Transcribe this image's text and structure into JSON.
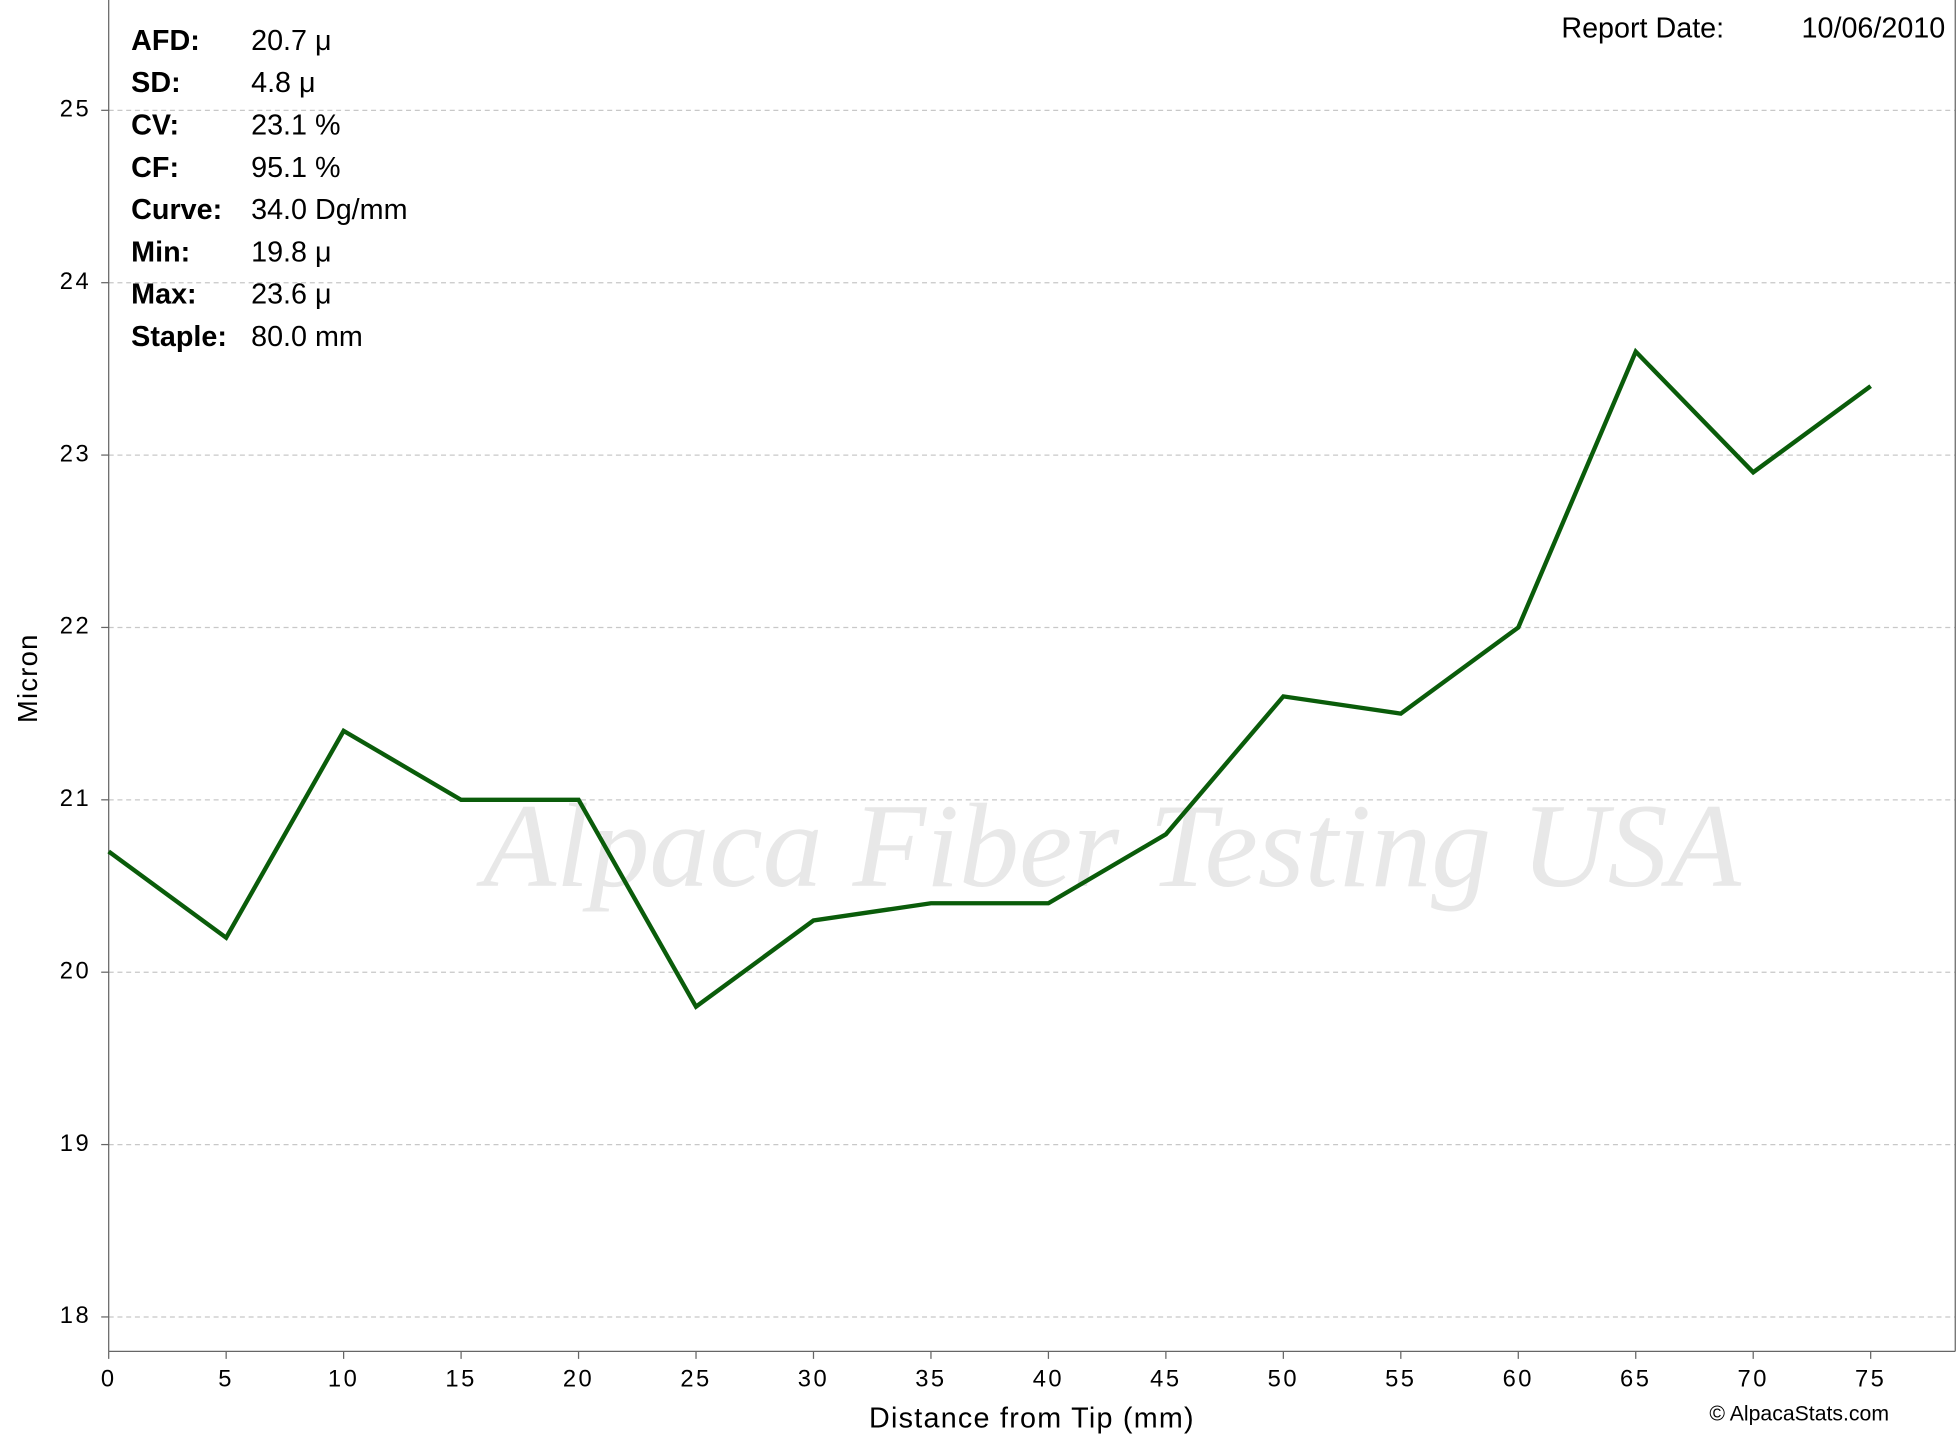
{
  "chart_data": {
    "type": "line",
    "x_label": "Distance from Tip (mm)",
    "y_label": "Micron",
    "x": [
      0,
      5,
      10,
      15,
      20,
      25,
      30,
      35,
      40,
      45,
      50,
      55,
      60,
      65,
      70,
      75
    ],
    "series": [
      {
        "name": "Micron",
        "color": "#0a5c0a",
        "values": [
          20.7,
          20.2,
          21.4,
          21.0,
          21.0,
          19.8,
          20.3,
          20.4,
          20.4,
          20.8,
          21.6,
          21.5,
          22.0,
          23.6,
          22.9,
          23.4
        ]
      }
    ],
    "xlim": [
      0,
      78.6
    ],
    "xticks": [
      0,
      5,
      10,
      15,
      20,
      25,
      30,
      35,
      40,
      45,
      50,
      55,
      60,
      65,
      70,
      75
    ],
    "ylim": [
      17.8,
      25.64
    ],
    "yticks": [
      18,
      19,
      20,
      21,
      22,
      23,
      24,
      25
    ],
    "grid": true,
    "stats": [
      {
        "label": "AFD:",
        "value": "20.7 μ"
      },
      {
        "label": "SD:",
        "value": "4.8 μ"
      },
      {
        "label": "CV:",
        "value": "23.1 %"
      },
      {
        "label": "CF:",
        "value": "95.1 %"
      },
      {
        "label": "Curve:",
        "value": "34.0 Dg/mm"
      },
      {
        "label": "Min:",
        "value": "19.8 μ"
      },
      {
        "label": "Max:",
        "value": "23.6 μ"
      },
      {
        "label": "Staple:",
        "value": "80.0 mm"
      }
    ],
    "report_date_label": "Report Date:",
    "report_date": "10/06/2010",
    "watermark": "Alpaca Fiber Testing USA",
    "credit": "© AlpacaStats.com"
  }
}
